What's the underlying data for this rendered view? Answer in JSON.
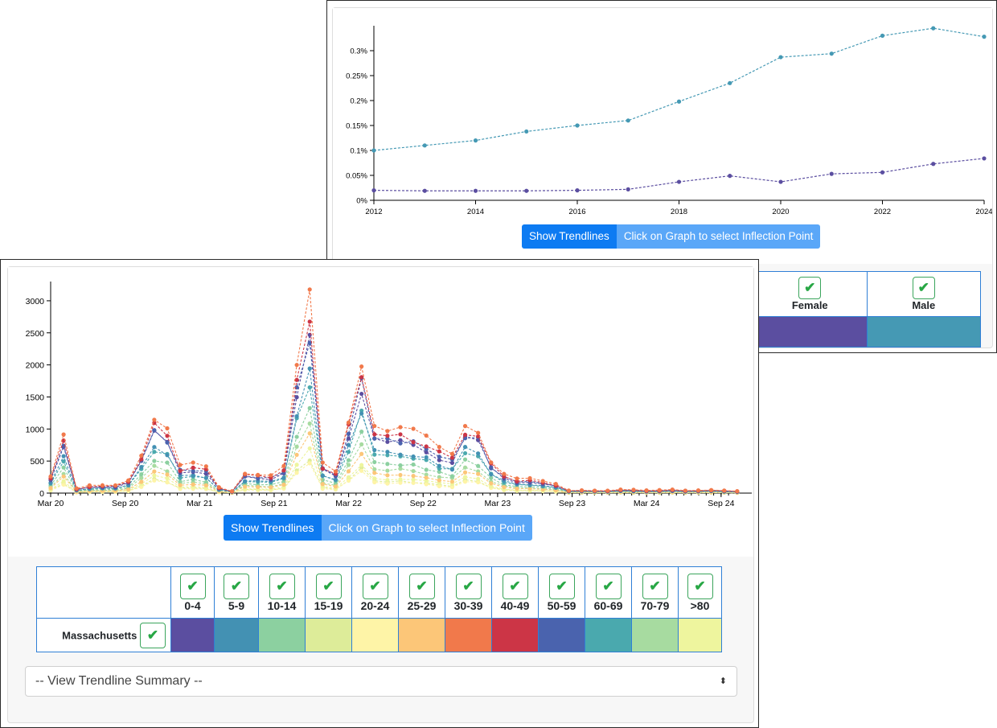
{
  "top_panel": {
    "buttons": {
      "trend": "Show Trendlines",
      "inflection": "Click on Graph to select Inflection Point"
    },
    "legend": {
      "headers": [
        "Female",
        "Male"
      ],
      "colors": [
        "#5b4ea0",
        "#4599b4"
      ],
      "check_icon": "check-icon"
    }
  },
  "bottom_panel": {
    "buttons": {
      "trend": "Show Trendlines",
      "inflection": "Click on Graph to select Inflection Point"
    },
    "legend": {
      "row_label": "Massachusetts",
      "headers": [
        "0-4",
        "5-9",
        "10-14",
        "15-19",
        "20-24",
        "25-29",
        "30-39",
        "40-49",
        "50-59",
        "60-69",
        "70-79",
        ">80"
      ],
      "colors": [
        "#5b4ea0",
        "#4391b3",
        "#8cd0a0",
        "#ddec99",
        "#fef4a7",
        "#fcc678",
        "#f1794b",
        "#cc3546",
        "#4a63ae",
        "#4aa9ae",
        "#a7dba0",
        "#eef59e"
      ],
      "check_icon": "check-icon"
    },
    "select": {
      "selected": "-- View Trendline Summary --",
      "arrow_icon": "sort-arrows-icon"
    }
  },
  "chart_data": [
    {
      "type": "line",
      "x": [
        2012,
        2013,
        2014,
        2015,
        2016,
        2017,
        2018,
        2019,
        2020,
        2021,
        2022,
        2023,
        2024
      ],
      "series": [
        {
          "color": "#4599b4",
          "values": [
            0.1,
            0.11,
            0.12,
            0.138,
            0.15,
            0.16,
            0.198,
            0.235,
            0.287,
            0.294,
            0.33,
            0.345,
            0.328
          ]
        },
        {
          "color": "#5b4ea0",
          "values": [
            0.02,
            0.019,
            0.019,
            0.019,
            0.02,
            0.022,
            0.037,
            0.049,
            0.037,
            0.053,
            0.056,
            0.073,
            0.084
          ]
        }
      ],
      "y_ticks": [
        "0%",
        "0.05%",
        "0.1%",
        "0.15%",
        "0.2%",
        "0.25%",
        "0.3%"
      ],
      "x_ticks": [
        "2012",
        "2014",
        "2016",
        "2018",
        "2020",
        "2022",
        "2024"
      ],
      "ylim": [
        0,
        0.35
      ],
      "xlim": [
        2012,
        2024
      ],
      "grid": false
    },
    {
      "type": "line",
      "x_ticks": [
        "Mar 20",
        "Sep 20",
        "Mar 21",
        "Sep 21",
        "Mar 22",
        "Sep 22",
        "Mar 23",
        "Sep 23",
        "Mar 24",
        "Sep 24"
      ],
      "y_ticks": [
        "0",
        "500",
        "1000",
        "1500",
        "2000",
        "2500",
        "3000"
      ],
      "ylim": [
        0,
        3300
      ],
      "xlim": [
        0,
        96
      ],
      "grid": false,
      "shape": [
        260,
        880,
        70,
        115,
        120,
        125,
        210,
        620,
        1180,
        1000,
        420,
        450,
        400,
        90,
        30,
        320,
        300,
        285,
        415,
        1900,
        3000,
        460,
        340,
        1150,
        2100,
        1100,
        980,
        1000,
        950,
        850,
        700,
        620,
        1100,
        1000,
        500,
        300,
        220,
        220,
        180,
        140,
        40,
        45,
        40,
        40,
        55,
        50,
        40,
        45,
        55,
        40,
        45,
        50,
        40,
        30
      ],
      "shape_x_step": 1.7736,
      "series": [
        {
          "name": "0-4",
          "color": "#5b4ea0",
          "scale": 0.78
        },
        {
          "name": "5-9",
          "color": "#4391b3",
          "scale": 0.62
        },
        {
          "name": "10-14",
          "color": "#8cd0a0",
          "scale": 0.45
        },
        {
          "name": "15-19",
          "color": "#ddec99",
          "scale": 0.18
        },
        {
          "name": "20-24",
          "color": "#fef4a7",
          "scale": 0.16
        },
        {
          "name": "25-29",
          "color": "#fcc678",
          "scale": 0.3
        },
        {
          "name": "30-39",
          "color": "#f1794b",
          "scale": 1.0
        },
        {
          "name": "40-49",
          "color": "#cc3546",
          "scale": 0.88
        },
        {
          "name": "50-59",
          "color": "#4a63ae",
          "scale": 0.82
        },
        {
          "name": "60-69",
          "color": "#4aa9ae",
          "scale": 0.58
        },
        {
          "name": "70-79",
          "color": "#a7dba0",
          "scale": 0.36
        },
        {
          "name": ">80",
          "color": "#eef59e",
          "scale": 0.22
        }
      ]
    }
  ]
}
